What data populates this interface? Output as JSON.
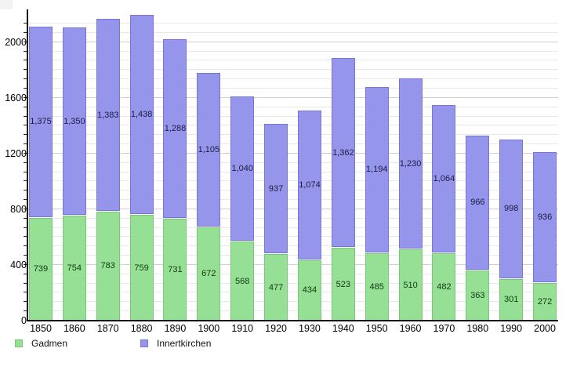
{
  "chart_data": {
    "type": "bar",
    "stacked": true,
    "title": "",
    "xlabel": "",
    "ylabel": "",
    "categories": [
      "1850",
      "1860",
      "1870",
      "1880",
      "1890",
      "1900",
      "1910",
      "1920",
      "1930",
      "1940",
      "1950",
      "1960",
      "1970",
      "1980",
      "1990",
      "2000"
    ],
    "series": [
      {
        "name": "Gadmen",
        "color": "#95E095",
        "border_color": "#79C979",
        "label_color": "#123812",
        "values": [
          739,
          754,
          783,
          759,
          731,
          672,
          568,
          477,
          434,
          523,
          485,
          510,
          482,
          363,
          301,
          272
        ]
      },
      {
        "name": "Innertkirchen",
        "color": "#9695EC",
        "border_color": "#7775D9",
        "label_color": "#1b1b40",
        "values": [
          1375,
          1350,
          1383,
          1438,
          1288,
          1105,
          1040,
          937,
          1074,
          1362,
          1194,
          1230,
          1064,
          966,
          998,
          936
        ]
      }
    ],
    "bar_value_labels": {
      "Gadmen": [
        "739",
        "754",
        "783",
        "759",
        "731",
        "672",
        "568",
        "477",
        "434",
        "523",
        "485",
        "510",
        "482",
        "363",
        "301",
        "272"
      ],
      "Innertkirchen": [
        "1,375",
        "1,350",
        "1,383",
        "1,438",
        "1,288",
        "1,105",
        "1,040",
        "937",
        "1,074",
        "1,362",
        "1,194",
        "1,230",
        "1,064",
        "966",
        "998",
        "936"
      ]
    },
    "ylim": [
      0,
      2244
    ],
    "y_tick_labels": [
      "0",
      "400",
      "800",
      "1200",
      "1600",
      "2000"
    ],
    "y_major_step": 400,
    "y_minor_divisions_per_major": 6,
    "grid": "horizontal minor + major gridlines",
    "legend_position": "bottom-left"
  },
  "legend": {
    "items": [
      {
        "label": "Gadmen"
      },
      {
        "label": "Innertkirchen"
      }
    ]
  }
}
